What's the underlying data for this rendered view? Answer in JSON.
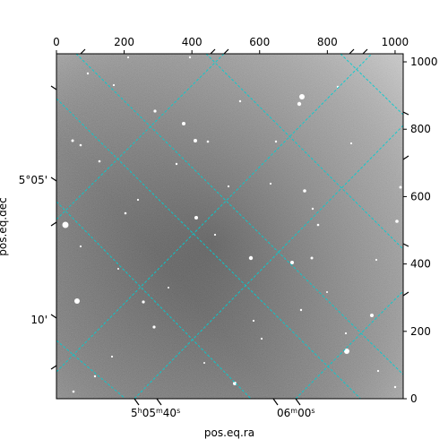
{
  "chart_data": {
    "type": "image",
    "xlabel": "pos.eq.ra",
    "ylabel": "pos.eq.dec",
    "pixel_xlim": [
      0,
      1024
    ],
    "pixel_ylim": [
      0,
      1024
    ],
    "top_ticks": [
      0,
      200,
      400,
      600,
      800,
      1000
    ],
    "right_ticks": [
      0,
      200,
      400,
      600,
      800,
      1000
    ],
    "ra_tick_labels": [
      {
        "hour": "5",
        "min": "05",
        "sec": "40"
      },
      {
        "hour": "",
        "min": "06",
        "sec": "00"
      }
    ],
    "dec_tick_labels": [
      "5°05'",
      "10'"
    ],
    "grid_color": "#00ced1",
    "image_description_colors": {
      "background": "#7a7a7a",
      "stars": "#ffffff"
    }
  }
}
